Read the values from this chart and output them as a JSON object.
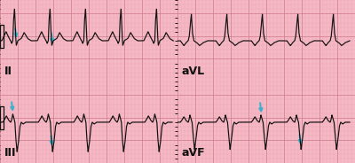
{
  "bg_color": "#f5b8c4",
  "grid_minor_color": "#e8a0b0",
  "grid_major_color": "#cc7788",
  "line_color": "#111111",
  "arrow_color": "#3ab0cc",
  "label_color": "#111111",
  "labels": [
    "II",
    "aVL",
    "III",
    "aVF"
  ],
  "label_fontsize": 9,
  "figsize": [
    4.0,
    1.84
  ],
  "dpi": 100,
  "xlim": [
    0,
    10.0
  ],
  "ylim": [
    -1.2,
    1.2
  ]
}
